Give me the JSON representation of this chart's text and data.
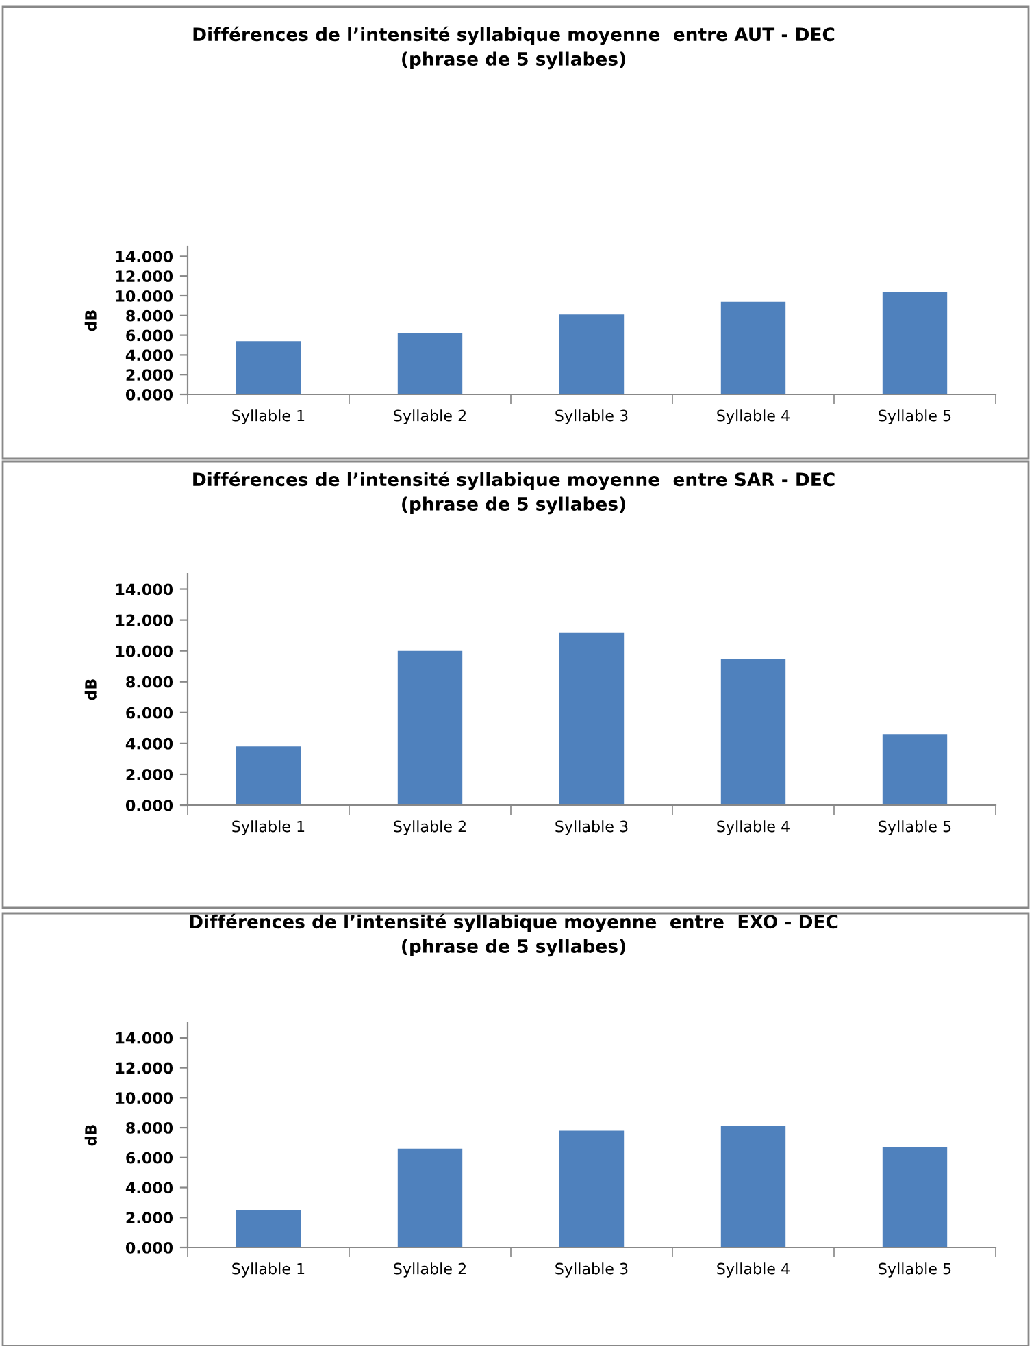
{
  "chart_data": [
    {
      "type": "bar",
      "title": "Différences de l’intensité syllabique moyenne  entre AUT - DEC\n(phrase de 5 syllabes)",
      "ylabel": "dB",
      "categories": [
        "Syllable 1",
        "Syllable 2",
        "Syllable 3",
        "Syllable 4",
        "Syllable 5"
      ],
      "values": [
        5.4,
        6.2,
        8.1,
        9.4,
        10.4
      ],
      "color": "#4f81bd",
      "ylim": [
        0,
        15
      ],
      "yticks": [
        {
          "value": 0,
          "label": "0.000"
        },
        {
          "value": 2,
          "label": "2.000"
        },
        {
          "value": 4,
          "label": "4.000"
        },
        {
          "value": 6,
          "label": "6.000"
        },
        {
          "value": 8,
          "label": "8.000"
        },
        {
          "value": 10,
          "label": "10.000"
        },
        {
          "value": 12,
          "label": "12.000"
        },
        {
          "value": 14,
          "label": "14.000"
        }
      ]
    },
    {
      "type": "bar",
      "title": "Différences de l’intensité syllabique moyenne  entre SAR - DEC\n(phrase de 5 syllabes)",
      "ylabel": "dB",
      "categories": [
        "Syllable 1",
        "Syllable 2",
        "Syllable 3",
        "Syllable 4",
        "Syllable 5"
      ],
      "values": [
        3.8,
        10.0,
        11.2,
        9.5,
        4.6
      ],
      "color": "#4f81bd",
      "ylim": [
        0,
        15
      ],
      "yticks": [
        {
          "value": 0,
          "label": "0.000"
        },
        {
          "value": 2,
          "label": "2.000"
        },
        {
          "value": 4,
          "label": "4.000"
        },
        {
          "value": 6,
          "label": "6.000"
        },
        {
          "value": 8,
          "label": "8.000"
        },
        {
          "value": 10,
          "label": "10.000"
        },
        {
          "value": 12,
          "label": "12.000"
        },
        {
          "value": 14,
          "label": "14.000"
        }
      ]
    },
    {
      "type": "bar",
      "title": "Différences de l’intensité syllabique moyenne  entre  EXO - DEC\n(phrase de 5 syllabes)",
      "ylabel": "dB",
      "categories": [
        "Syllable 1",
        "Syllable 2",
        "Syllable 3",
        "Syllable 4",
        "Syllable 5"
      ],
      "values": [
        2.5,
        6.6,
        7.8,
        8.1,
        6.7
      ],
      "color": "#4f81bd",
      "ylim": [
        0,
        15
      ],
      "yticks": [
        {
          "value": 0,
          "label": "0.000"
        },
        {
          "value": 2,
          "label": "2.000"
        },
        {
          "value": 4,
          "label": "4.000"
        },
        {
          "value": 6,
          "label": "6.000"
        },
        {
          "value": 8,
          "label": "8.000"
        },
        {
          "value": 10,
          "label": "10.000"
        },
        {
          "value": 12,
          "label": "12.000"
        },
        {
          "value": 14,
          "label": "14.000"
        }
      ]
    }
  ]
}
